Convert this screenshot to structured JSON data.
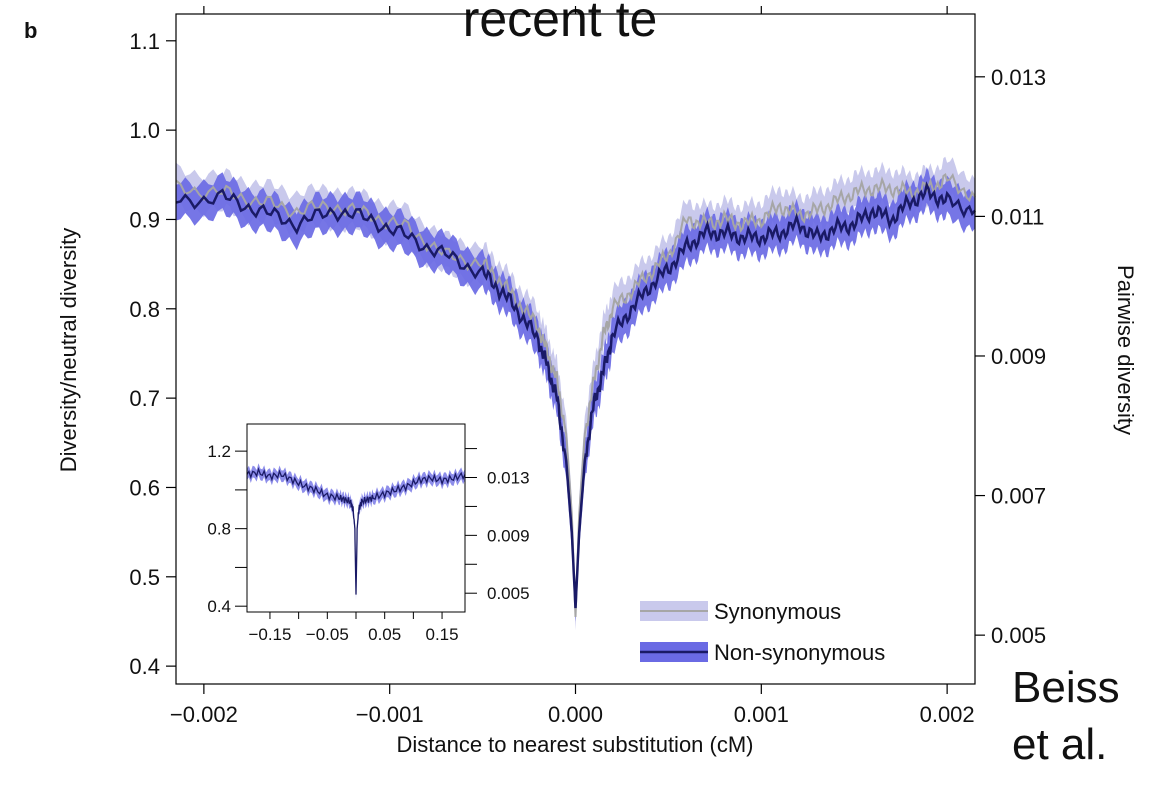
{
  "panel_label": "b",
  "overlay": {
    "top_text": "recent te",
    "citation_line1": "Beiss",
    "citation_line2": "et al."
  },
  "chart_data": {
    "type": "line",
    "xlabel": "Distance to nearest substitution (cM)",
    "ylabel": "Diversity/neutral diversity",
    "ylabel_right": "Pairwise diversity",
    "xlim": [
      -0.00215,
      0.00215
    ],
    "ylim": [
      0.38,
      1.13
    ],
    "ylim_right": [
      0.0043,
      0.0139
    ],
    "x_ticks": [
      -0.002,
      -0.001,
      0.0,
      0.001,
      0.002
    ],
    "x_tick_labels": [
      "−0.002",
      "−0.001",
      "0.000",
      "0.001",
      "0.002"
    ],
    "y_ticks": [
      0.4,
      0.5,
      0.6,
      0.7,
      0.8,
      0.9,
      1.0,
      1.1
    ],
    "y_tick_labels": [
      "0.4",
      "0.5",
      "0.6",
      "0.7",
      "0.8",
      "0.9",
      "1.0",
      "1.1"
    ],
    "y_right_ticks": [
      0.005,
      0.007,
      0.009,
      0.011,
      0.013
    ],
    "y_right_tick_labels": [
      "0.005",
      "0.007",
      "0.009",
      "0.011",
      "0.013"
    ],
    "legend_position": "bottom-right",
    "series": [
      {
        "name": "Synonymous",
        "line_color": "#a6a6a6",
        "band_color": "#c9c9ec",
        "x": [
          -0.00215,
          -0.0019,
          -0.0017,
          -0.0015,
          -0.0013,
          -0.0011,
          -0.0009,
          -0.0007,
          -0.0005,
          -0.0004,
          -0.0003,
          -0.0002,
          -0.00015,
          -0.0001,
          -5e-05,
          -2e-05,
          0.0,
          2e-05,
          5e-05,
          0.0001,
          0.00015,
          0.0002,
          0.0003,
          0.0004,
          0.0005,
          0.0006,
          0.0007,
          0.0008,
          0.0009,
          0.001,
          0.0011,
          0.0012,
          0.0013,
          0.0014,
          0.0015,
          0.0016,
          0.0017,
          0.0018,
          0.0019,
          0.002,
          0.00215
        ],
        "y": [
          0.935,
          0.93,
          0.92,
          0.91,
          0.915,
          0.905,
          0.89,
          0.86,
          0.85,
          0.83,
          0.805,
          0.78,
          0.75,
          0.72,
          0.66,
          0.57,
          0.455,
          0.57,
          0.66,
          0.72,
          0.77,
          0.8,
          0.82,
          0.84,
          0.86,
          0.9,
          0.895,
          0.9,
          0.895,
          0.9,
          0.915,
          0.905,
          0.91,
          0.92,
          0.93,
          0.935,
          0.935,
          0.93,
          0.935,
          0.945,
          0.925
        ],
        "band_halfwidth": [
          0.02,
          0.02,
          0.02,
          0.02,
          0.02,
          0.02,
          0.02,
          0.02,
          0.02,
          0.02,
          0.02,
          0.02,
          0.02,
          0.02,
          0.02,
          0.02,
          0.015,
          0.02,
          0.02,
          0.02,
          0.02,
          0.02,
          0.02,
          0.02,
          0.02,
          0.02,
          0.02,
          0.02,
          0.02,
          0.02,
          0.02,
          0.02,
          0.02,
          0.02,
          0.02,
          0.02,
          0.02,
          0.02,
          0.02,
          0.02,
          0.02
        ]
      },
      {
        "name": "Non-synonymous",
        "line_color": "#1a1a66",
        "band_color": "#6a6ae4",
        "x": [
          -0.00215,
          -0.0019,
          -0.0017,
          -0.0015,
          -0.0013,
          -0.0011,
          -0.0009,
          -0.0007,
          -0.0005,
          -0.0004,
          -0.0003,
          -0.0002,
          -0.00015,
          -0.0001,
          -5e-05,
          -2e-05,
          0.0,
          2e-05,
          5e-05,
          0.0001,
          0.00015,
          0.0002,
          0.0003,
          0.0004,
          0.0005,
          0.0006,
          0.0007,
          0.0008,
          0.0009,
          0.001,
          0.0011,
          0.0012,
          0.0013,
          0.0014,
          0.0015,
          0.0016,
          0.0017,
          0.0018,
          0.0019,
          0.002,
          0.00215
        ],
        "y": [
          0.92,
          0.925,
          0.91,
          0.895,
          0.91,
          0.9,
          0.88,
          0.86,
          0.84,
          0.82,
          0.795,
          0.765,
          0.735,
          0.7,
          0.63,
          0.55,
          0.465,
          0.55,
          0.63,
          0.695,
          0.73,
          0.77,
          0.8,
          0.825,
          0.845,
          0.87,
          0.885,
          0.885,
          0.88,
          0.88,
          0.885,
          0.895,
          0.88,
          0.89,
          0.895,
          0.91,
          0.9,
          0.92,
          0.93,
          0.92,
          0.91
        ],
        "band_halfwidth": [
          0.02,
          0.02,
          0.02,
          0.02,
          0.02,
          0.02,
          0.02,
          0.02,
          0.02,
          0.02,
          0.02,
          0.02,
          0.02,
          0.02,
          0.02,
          0.02,
          0.015,
          0.02,
          0.02,
          0.02,
          0.02,
          0.02,
          0.02,
          0.02,
          0.02,
          0.02,
          0.02,
          0.02,
          0.02,
          0.02,
          0.02,
          0.02,
          0.02,
          0.02,
          0.02,
          0.02,
          0.02,
          0.02,
          0.02,
          0.02,
          0.02
        ]
      }
    ],
    "inset": {
      "xlim": [
        -0.19,
        0.19
      ],
      "ylim": [
        0.37,
        1.34
      ],
      "ylim_right": [
        0.0037,
        0.0167
      ],
      "x_ticks": [
        -0.15,
        -0.05,
        0.05,
        0.15
      ],
      "x_tick_labels": [
        "−0.15",
        "−0.05",
        "0.05",
        "0.15"
      ],
      "y_ticks": [
        0.4,
        0.8,
        1.2
      ],
      "y_tick_labels": [
        "0.4",
        "0.8",
        "1.2"
      ],
      "y_right_ticks": [
        0.005,
        0.009,
        0.013
      ],
      "y_right_tick_labels": [
        "0.005",
        "0.009",
        "0.013"
      ],
      "x": [
        -0.19,
        -0.17,
        -0.15,
        -0.13,
        -0.11,
        -0.09,
        -0.07,
        -0.05,
        -0.03,
        -0.02,
        -0.01,
        -0.005,
        -0.002,
        0.0,
        0.002,
        0.005,
        0.01,
        0.02,
        0.03,
        0.05,
        0.07,
        0.09,
        0.11,
        0.13,
        0.15,
        0.17,
        0.19
      ],
      "y": [
        1.08,
        1.09,
        1.07,
        1.08,
        1.05,
        1.02,
        1.0,
        0.97,
        0.96,
        0.95,
        0.94,
        0.9,
        0.8,
        0.46,
        0.8,
        0.9,
        0.94,
        0.95,
        0.96,
        0.98,
        1.0,
        1.02,
        1.05,
        1.06,
        1.05,
        1.06,
        1.08
      ]
    }
  }
}
